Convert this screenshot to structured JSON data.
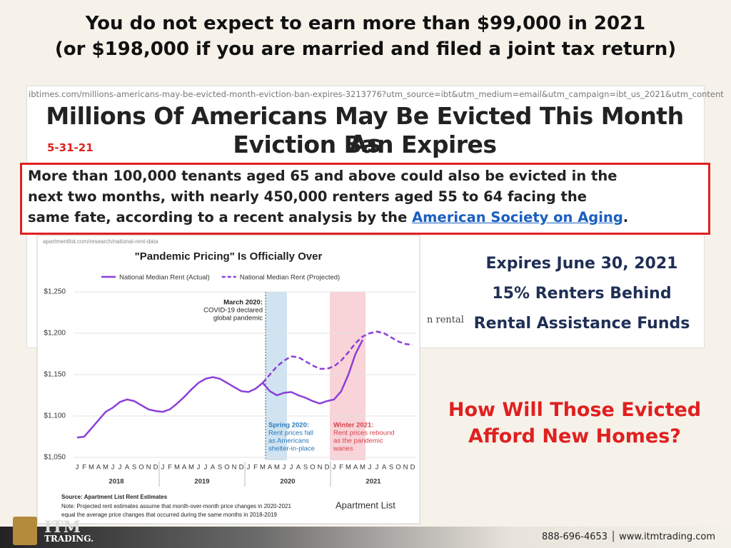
{
  "slide": {
    "title": [
      "You do not expect to earn more than $99,000 in 2021",
      "(or $198,000 if you are married and filed a joint tax return)"
    ],
    "article_url": "ibtimes.com/millions-americans-may-be-evicted-month-eviction-ban-expires-3213776?utm_source=ibt&utm_medium=email&utm_campaign=ibt_us_2021&utm_content",
    "headline": [
      "Millions Of Americans May Be Evicted This Month As",
      "Eviction Ban Expires"
    ],
    "date": "5-31-21",
    "quote_lines": [
      "More than 100,000 tenants aged 65 and above could also be evicted in the",
      "next two months, with nearly 450,000 renters aged 55 to 64 facing the"
    ],
    "quote_last": "same fate, according to a recent analysis by the ",
    "quote_link": "American Society on Aging",
    "quote_end": ".",
    "partial_text": "n rental",
    "facts": [
      "Expires June 30, 2021",
      "15% Renters Behind",
      "Rental Assistance Funds"
    ],
    "question": [
      "How Will Those Evicted",
      "Afford New Homes?"
    ],
    "logo": [
      "ITM",
      "TRADING."
    ],
    "contact": "888-696-4653 │ www.itmtrading.com"
  },
  "chart_data": {
    "type": "line",
    "url": "apartmentlist.com/research/national-rent-data",
    "title": "\"Pandemic Pricing\" Is Officially Over",
    "categories": [
      "J",
      "F",
      "M",
      "A",
      "M",
      "J",
      "J",
      "A",
      "S",
      "O",
      "N",
      "D",
      "J",
      "F",
      "M",
      "A",
      "M",
      "J",
      "J",
      "A",
      "S",
      "O",
      "N",
      "D",
      "J",
      "F",
      "M",
      "A",
      "M",
      "J",
      "J",
      "A",
      "S",
      "O",
      "N",
      "D",
      "J",
      "F",
      "M",
      "A",
      "M",
      "J",
      "J",
      "A",
      "S",
      "O",
      "N",
      "D"
    ],
    "year_labels": [
      "2018",
      "2019",
      "2020",
      "2021"
    ],
    "series": [
      {
        "name": "National Median Rent (Actual)",
        "color": "#8b3fd9",
        "dashed": false,
        "values": [
          1074,
          1075,
          1085,
          1095,
          1105,
          1110,
          1117,
          1120,
          1118,
          1113,
          1108,
          1106,
          1105,
          1108,
          1115,
          1123,
          1132,
          1140,
          1145,
          1147,
          1145,
          1140,
          1135,
          1130,
          1129,
          1133,
          1140,
          1130,
          1125,
          1128,
          1129,
          1125,
          1122,
          1118,
          1115,
          1118,
          1120,
          1130,
          1150,
          1175,
          1192,
          null,
          null,
          null,
          null,
          null,
          null,
          null
        ]
      },
      {
        "name": "National Median Rent (Projected)",
        "color": "#8b3fd9",
        "dashed": true,
        "values": [
          null,
          null,
          null,
          null,
          null,
          null,
          null,
          null,
          null,
          null,
          null,
          null,
          null,
          null,
          null,
          null,
          null,
          null,
          null,
          null,
          null,
          null,
          null,
          null,
          null,
          null,
          1140,
          1150,
          1160,
          1167,
          1172,
          1171,
          1166,
          1161,
          1157,
          1157,
          1160,
          1167,
          1177,
          1188,
          1196,
          1200,
          1202,
          1200,
          1195,
          1190,
          1187,
          1186
        ]
      }
    ],
    "ylim": [
      1050,
      1250
    ],
    "yticks": [
      {
        "value": 1050,
        "label": "$1,050"
      },
      {
        "value": 1100,
        "label": "$1,100"
      },
      {
        "value": 1150,
        "label": "$1,150"
      },
      {
        "value": 1200,
        "label": "$1,200"
      },
      {
        "value": 1250,
        "label": "$1,250"
      }
    ],
    "grid": true,
    "annotations": [
      {
        "lines": [
          "March 2020:",
          "COVID-19 declared",
          "global pandemic"
        ],
        "color": "#222222"
      },
      {
        "lines": [
          "Spring 2020:",
          "Rent prices fall",
          "as Americans",
          "shelter-in-place"
        ],
        "color": "#2a78b8"
      },
      {
        "lines": [
          "Winter 2021:",
          "Rent prices rebound",
          "as the pandemic",
          "wanes"
        ],
        "color": "#d6404a"
      }
    ],
    "source": "Source: Apartment List Rent Estimates",
    "note": [
      "Note: Projected rent estimates assume that month-over-month price changes in 2020-2021",
      "equal the average price changes that occurred during the same months in 2018-2019"
    ],
    "brand": "Apartment List"
  }
}
